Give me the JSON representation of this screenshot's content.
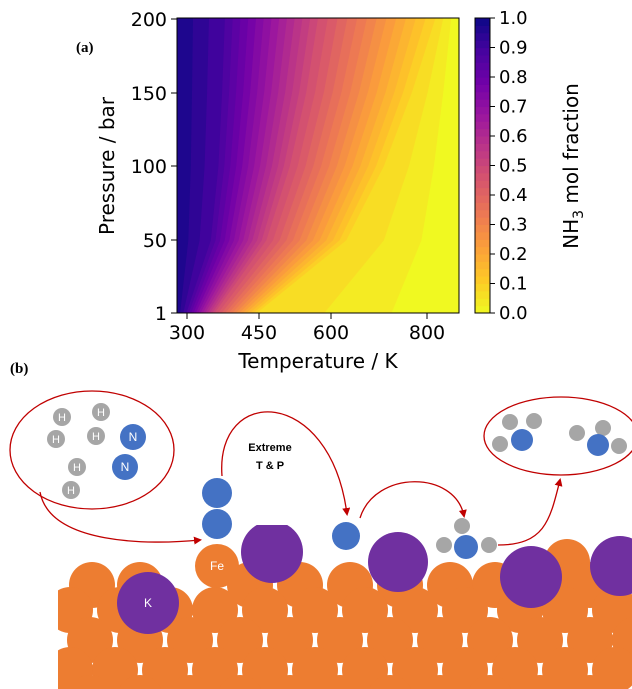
{
  "panel_a": {
    "label": "(a)",
    "xlabel": "Temperature / K",
    "ylabel": "Pressure / bar",
    "xticks": [
      "300",
      "450",
      "600",
      "800"
    ],
    "yticks": [
      "200",
      "150",
      "100",
      "50",
      "1"
    ],
    "colorbar": {
      "label_main": "NH",
      "label_sub": "3",
      "label_rest": " mol fraction",
      "ticks": [
        "1.0",
        "0.9",
        "0.8",
        "0.7",
        "0.6",
        "0.5",
        "0.4",
        "0.3",
        "0.2",
        "0.1",
        "0.0"
      ],
      "colormap": "plasma (reversed)",
      "colors": [
        "#f0f921",
        "#fdca26",
        "#fb9f3a",
        "#ed7953",
        "#d8576b",
        "#bd3786",
        "#9c179e",
        "#7201a8",
        "#46039f",
        "#0d0887"
      ]
    }
  },
  "chart_data": {
    "type": "heatmap",
    "title": "",
    "xlabel": "Temperature / K",
    "ylabel": "Pressure / bar",
    "xlim": [
      280,
      880
    ],
    "ylim": [
      1,
      200
    ],
    "zlabel": "NH3 mol fraction",
    "zlim": [
      0.0,
      1.0
    ],
    "contours": [
      {
        "level": 0.9,
        "T_at_P": [
          [
            1,
            300
          ],
          [
            50,
            352
          ],
          [
            100,
            368
          ],
          [
            150,
            376
          ],
          [
            200,
            382
          ]
        ]
      },
      {
        "level": 0.5,
        "T_at_P": [
          [
            1,
            360
          ],
          [
            50,
            470
          ],
          [
            100,
            520
          ],
          [
            150,
            555
          ],
          [
            200,
            580
          ]
        ]
      },
      {
        "level": 0.1,
        "T_at_P": [
          [
            1,
            450
          ],
          [
            50,
            640
          ],
          [
            100,
            720
          ],
          [
            150,
            780
          ],
          [
            200,
            830
          ]
        ]
      }
    ]
  },
  "panel_b": {
    "label": "(b)",
    "callout_text_1": "Extreme",
    "callout_text_2": "T & P",
    "gas_atoms": {
      "H": "H",
      "N": "N"
    },
    "surface_labels": {
      "fe": "Fe",
      "k": "K"
    },
    "colors": {
      "fe": "#ed7d31",
      "k": "#7030a0",
      "n": "#4472c4",
      "h": "#a6a6a6",
      "arrow": "#c00000"
    }
  }
}
